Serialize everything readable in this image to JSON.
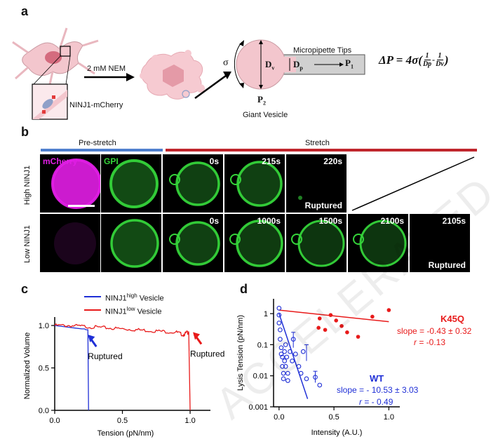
{
  "panel_a": {
    "letter": "a",
    "nem_label": "2 mM NEM",
    "cell_label": "NINJ1-mCherry",
    "micropipette_label": "Micropipette Tips",
    "giant_vesicle_label": "Giant Vesicle",
    "sigma": "σ",
    "dv": "D",
    "dv_sub": "v",
    "dp": "D",
    "dp_sub": "p",
    "p1": "P",
    "p1_sub": "1",
    "p2": "P",
    "p2_sub": "2",
    "equation_lhs": "ΔP = 4σ(",
    "equation_frac1_num": "1",
    "equation_frac1_den": "Dp",
    "equation_minus": "-",
    "equation_frac2_num": "1",
    "equation_frac2_den": "Dv",
    "equation_close": ")"
  },
  "panel_b": {
    "letter": "b",
    "prestretch_label": "Pre-stretch",
    "stretch_label": "Stretch",
    "row_high": "High NINJ1",
    "row_low": "Low NINJ1",
    "mcherry_label": "mCherry",
    "gpi_label": "GPI",
    "high_times": [
      "0s",
      "215s",
      "220s"
    ],
    "low_times": [
      "0s",
      "1000s",
      "1500s",
      "2100s",
      "2105s"
    ],
    "ruptured": "Ruptured",
    "prestretch_color": "#4f7fce",
    "stretch_color": "#c0262c",
    "mcherry_color": "#e21ee6",
    "gpi_color": "#35d43a"
  },
  "panel_c": {
    "letter": "c",
    "chart_data": {
      "type": "line",
      "xlabel": "Tension (pN/nm)",
      "ylabel": "Normalized Volume",
      "xlim": [
        0.0,
        1.15
      ],
      "ylim": [
        0.0,
        1.05
      ],
      "x_ticks": [
        "0.0",
        "0.5",
        "1.0"
      ],
      "y_ticks": [
        "0.0",
        "0.5",
        "1.0"
      ],
      "legend": [
        {
          "name_main": "NINJ1",
          "name_sup": "high",
          "name_tail": " Vesicle",
          "color": "#1f2fd6"
        },
        {
          "name_main": "NINJ1",
          "name_sup": "low",
          "name_tail": " Vesicle",
          "color": "#e81a1a"
        }
      ],
      "series": [
        {
          "name": "NINJ1high Vesicle",
          "color": "#1f2fd6",
          "x": [
            0.0,
            0.05,
            0.1,
            0.15,
            0.2,
            0.22,
            0.23,
            0.24,
            0.245,
            0.25
          ],
          "y": [
            1.0,
            0.99,
            0.98,
            0.97,
            0.96,
            0.96,
            0.95,
            0.95,
            0.95,
            0.0
          ]
        },
        {
          "name": "NINJ1low Vesicle",
          "color": "#e81a1a",
          "x": [
            0.0,
            0.1,
            0.2,
            0.3,
            0.4,
            0.5,
            0.6,
            0.7,
            0.8,
            0.9,
            0.95,
            0.98,
            0.99,
            1.0
          ],
          "y": [
            1.0,
            1.0,
            0.99,
            0.98,
            0.97,
            0.96,
            0.95,
            0.94,
            0.93,
            0.92,
            0.89,
            0.92,
            0.91,
            0.0
          ]
        }
      ],
      "annotations": [
        "Ruptured",
        "Ruptured"
      ]
    }
  },
  "panel_d": {
    "letter": "d",
    "chart_data": {
      "type": "scatter",
      "xlabel": "Intensity (A.U.)",
      "ylabel": "Lysis Tension (pN/nm)",
      "x_scale": "linear",
      "y_scale": "log",
      "xlim": [
        -0.05,
        1.1
      ],
      "ylim": [
        0.001,
        3
      ],
      "x_ticks": [
        "0.0",
        "0.5",
        "1.0"
      ],
      "y_ticks": [
        "0.001",
        "0.01",
        "0.1",
        "1"
      ],
      "series": [
        {
          "name": "K45Q",
          "color": "#e81a1a",
          "marker": "filled",
          "x": [
            0.37,
            0.42,
            0.47,
            0.52,
            0.57,
            0.62,
            0.72,
            0.85,
            1.0,
            0.36
          ],
          "y": [
            0.7,
            0.3,
            0.9,
            0.6,
            0.4,
            0.25,
            0.18,
            0.8,
            1.3,
            0.35
          ],
          "fit": {
            "slope_text": "slope = -0.43 ± 0.32",
            "r_label": "r",
            "r_value": " = -0.13"
          },
          "fit_line": {
            "x": [
              0.0,
              1.0
            ],
            "y": [
              1.3,
              0.55
            ]
          }
        },
        {
          "name": "WT",
          "color": "#1f2fd6",
          "marker": "open",
          "x": [
            0.0,
            0.0,
            0.0,
            0.01,
            0.01,
            0.02,
            0.02,
            0.03,
            0.03,
            0.04,
            0.04,
            0.05,
            0.05,
            0.06,
            0.06,
            0.07,
            0.08,
            0.08,
            0.1,
            0.12,
            0.13,
            0.15,
            0.18,
            0.2,
            0.22,
            0.25,
            0.33,
            0.37
          ],
          "y": [
            1.5,
            0.9,
            0.5,
            0.3,
            0.15,
            0.08,
            0.05,
            0.04,
            0.02,
            0.012,
            0.008,
            0.06,
            0.03,
            0.1,
            0.02,
            0.04,
            0.012,
            0.007,
            0.06,
            0.03,
            0.15,
            0.05,
            0.02,
            0.012,
            0.06,
            0.008,
            0.009,
            0.005
          ],
          "fit": {
            "slope_text": "slope = - 10.53 ± 3.03",
            "r_label": "r",
            "r_value": " = - 0.49"
          },
          "fit_line": {
            "x": [
              0.0,
              0.26
            ],
            "y": [
              1.0,
              0.0018
            ]
          }
        }
      ]
    }
  },
  "watermark_text": "ACCELERATED ARTICLE PREVIEW"
}
